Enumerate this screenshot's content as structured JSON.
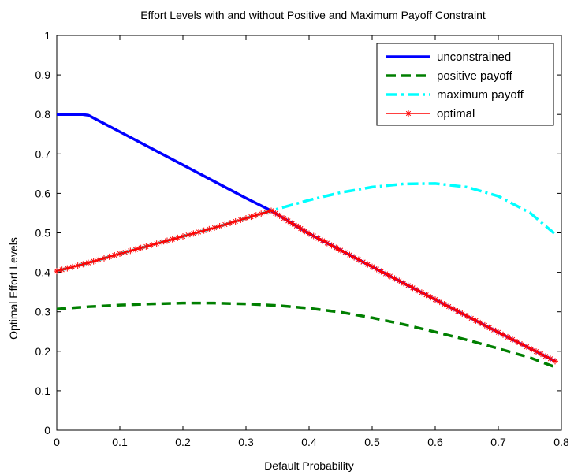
{
  "chart_data": {
    "type": "line",
    "title": "Effort Levels with and without Positive and Maximum Payoff Constraint",
    "xlabel": "Default Probability",
    "ylabel": "Optimal Effort Levels",
    "xlim": [
      0,
      0.8
    ],
    "ylim": [
      0,
      1
    ],
    "xticks": [
      "0",
      "0.1",
      "0.2",
      "0.3",
      "0.4",
      "0.5",
      "0.6",
      "0.7",
      "0.8"
    ],
    "yticks": [
      "0",
      "0.1",
      "0.2",
      "0.3",
      "0.4",
      "0.5",
      "0.6",
      "0.7",
      "0.8",
      "0.9",
      "1"
    ],
    "grid": false,
    "legend_position": "top-right",
    "series": [
      {
        "name": "unconstrained",
        "color": "#0000ff",
        "style": "solid",
        "x": [
          0,
          0.04,
          0.05,
          0.1,
          0.2,
          0.3,
          0.34,
          0.4,
          0.5,
          0.6,
          0.7,
          0.79
        ],
        "y": [
          0.8,
          0.8,
          0.798,
          0.756,
          0.672,
          0.588,
          0.556,
          0.498,
          0.414,
          0.331,
          0.248,
          0.175
        ]
      },
      {
        "name": "positive payoff",
        "color": "#007f00",
        "style": "dashed",
        "x": [
          0,
          0.05,
          0.1,
          0.15,
          0.2,
          0.25,
          0.3,
          0.35,
          0.4,
          0.45,
          0.5,
          0.55,
          0.6,
          0.65,
          0.7,
          0.75,
          0.79
        ],
        "y": [
          0.307,
          0.313,
          0.317,
          0.32,
          0.322,
          0.322,
          0.32,
          0.316,
          0.309,
          0.299,
          0.285,
          0.268,
          0.249,
          0.229,
          0.207,
          0.184,
          0.16
        ]
      },
      {
        "name": "maximum payoff",
        "color": "#00ffff",
        "style": "dashdot",
        "x": [
          0,
          0.05,
          0.1,
          0.15,
          0.2,
          0.25,
          0.3,
          0.34,
          0.4,
          0.45,
          0.5,
          0.55,
          0.6,
          0.65,
          0.7,
          0.75,
          0.79
        ],
        "y": [
          0.403,
          0.424,
          0.447,
          0.469,
          0.491,
          0.513,
          0.537,
          0.556,
          0.583,
          0.602,
          0.616,
          0.624,
          0.625,
          0.616,
          0.593,
          0.551,
          0.497
        ]
      },
      {
        "name": "optimal",
        "color": "#ff0000",
        "style": "solid-star",
        "x": [
          0,
          0.05,
          0.1,
          0.15,
          0.2,
          0.25,
          0.3,
          0.34,
          0.4,
          0.5,
          0.6,
          0.7,
          0.79
        ],
        "y": [
          0.403,
          0.424,
          0.447,
          0.469,
          0.491,
          0.513,
          0.537,
          0.556,
          0.498,
          0.414,
          0.331,
          0.248,
          0.175
        ]
      }
    ]
  }
}
